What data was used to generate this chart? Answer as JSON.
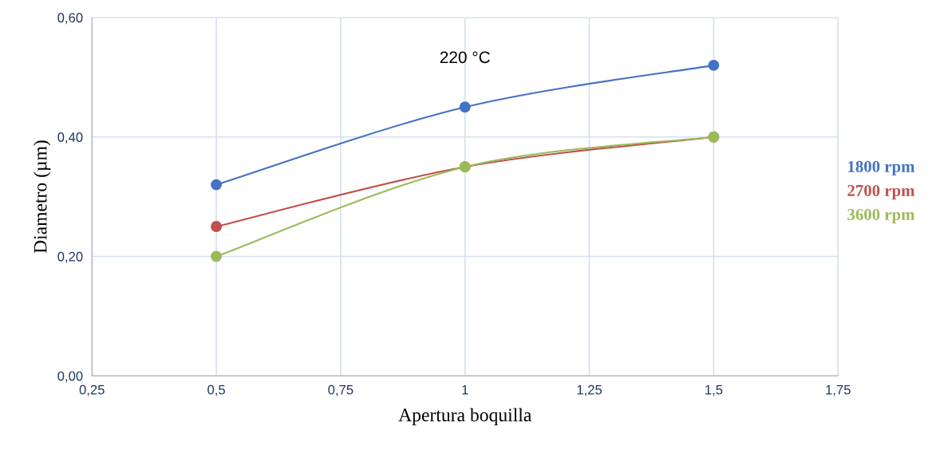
{
  "chart_data": {
    "type": "line",
    "xlabel": "Apertura boquilla",
    "ylabel": "Diametro (µm)",
    "annotations": [
      "220 °C"
    ],
    "x": [
      0.5,
      1,
      1.5
    ],
    "series": [
      {
        "name": "1800 rpm",
        "color": "#4472c4",
        "values": [
          0.32,
          0.45,
          0.52
        ]
      },
      {
        "name": "2700 rpm",
        "color": "#c0504d",
        "values": [
          0.25,
          0.35,
          0.4
        ]
      },
      {
        "name": "3600 rpm",
        "color": "#9bbb59",
        "values": [
          0.2,
          0.35,
          0.4
        ]
      }
    ],
    "xlim": [
      0.25,
      1.75
    ],
    "xticks": [
      {
        "value": 0.25,
        "label": "0,25"
      },
      {
        "value": 0.5,
        "label": "0,5"
      },
      {
        "value": 0.75,
        "label": "0,75"
      },
      {
        "value": 1,
        "label": "1"
      },
      {
        "value": 1.25,
        "label": "1,25"
      },
      {
        "value": 1.5,
        "label": "1,5"
      },
      {
        "value": 1.75,
        "label": "1,75"
      }
    ],
    "ylim": [
      0,
      0.6
    ],
    "yticks": [
      {
        "value": 0,
        "label": "0,00"
      },
      {
        "value": 0.2,
        "label": "0,20"
      },
      {
        "value": 0.4,
        "label": "0,40"
      },
      {
        "value": 0.6,
        "label": "0,60"
      }
    ],
    "grid": true,
    "legend": "right",
    "marker": "circle",
    "line_style": "solid"
  }
}
